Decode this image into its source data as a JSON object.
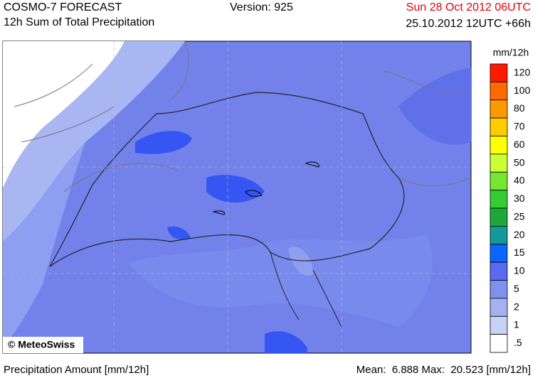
{
  "header": {
    "product": "COSMO-7 FORECAST",
    "subtitle": "12h Sum of Total Precipitation",
    "version": "Version: 925",
    "valid_time": "Sun 28 Oct 2012 06UTC",
    "run_time": "25.10.2012 12UTC +66h"
  },
  "map": {
    "credit": "© MeteoSwiss"
  },
  "legend": {
    "unit": "mm/12h",
    "levels": [
      {
        "label": "120",
        "color": "#ff1a00"
      },
      {
        "label": "100",
        "color": "#ff6a00"
      },
      {
        "label": "80",
        "color": "#ff9900"
      },
      {
        "label": "70",
        "color": "#ffcc00"
      },
      {
        "label": "60",
        "color": "#ffff00"
      },
      {
        "label": "50",
        "color": "#ccff33"
      },
      {
        "label": "40",
        "color": "#77e633"
      },
      {
        "label": "30",
        "color": "#33cc33"
      },
      {
        "label": "25",
        "color": "#1fa83a"
      },
      {
        "label": "20",
        "color": "#129a9a"
      },
      {
        "label": "15",
        "color": "#0a66ff"
      },
      {
        "label": "10",
        "color": "#5a6af0"
      },
      {
        "label": "5",
        "color": "#7f90f0"
      },
      {
        "label": "2",
        "color": "#a4b2f0"
      },
      {
        "label": "1",
        "color": "#c8d2f4"
      },
      {
        "label": ".5",
        "color": "#ffffff"
      }
    ]
  },
  "footer": {
    "quantity": "Precipitation Amount [mm/12h]",
    "mean_label": "Mean:",
    "mean": "6.888",
    "max_label": "Max:",
    "max": "20.523",
    "unit": "[mm/12h]"
  }
}
